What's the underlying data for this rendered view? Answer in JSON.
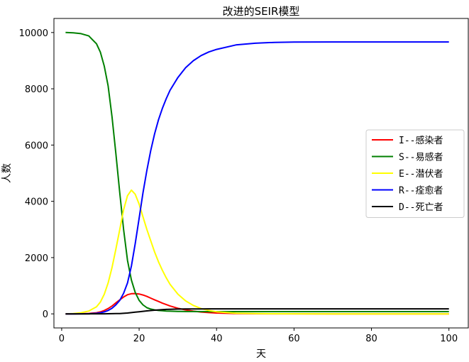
{
  "chart_data": {
    "type": "line",
    "title": "改进的SEIR模型",
    "xlabel": "天",
    "ylabel": "人数",
    "xlim": [
      -2,
      105
    ],
    "ylim": [
      -500,
      10500
    ],
    "xticks": [
      0,
      20,
      40,
      60,
      80,
      100
    ],
    "yticks": [
      0,
      2000,
      4000,
      6000,
      8000,
      10000
    ],
    "grid": false,
    "legend_position": "center-right",
    "x": [
      1,
      3,
      5,
      7,
      9,
      10,
      11,
      12,
      13,
      14,
      15,
      16,
      17,
      18,
      19,
      20,
      21,
      22,
      23,
      24,
      25,
      26,
      27,
      28,
      30,
      32,
      34,
      36,
      38,
      40,
      45,
      50,
      55,
      60,
      70,
      80,
      90,
      100
    ],
    "series": [
      {
        "name": "I--感染者",
        "color": "#ff0000",
        "values": [
          0,
          2,
          5,
          15,
          40,
          70,
          120,
          190,
          280,
          390,
          500,
          600,
          680,
          715,
          720,
          705,
          670,
          620,
          560,
          500,
          440,
          380,
          330,
          280,
          200,
          140,
          95,
          65,
          45,
          30,
          12,
          5,
          2,
          1,
          0,
          0,
          0,
          0
        ]
      },
      {
        "name": "S--易感者",
        "color": "#008000",
        "values": [
          10000,
          9990,
          9960,
          9880,
          9600,
          9300,
          8800,
          8100,
          7000,
          5700,
          4300,
          3000,
          1900,
          1200,
          760,
          480,
          320,
          220,
          170,
          140,
          120,
          110,
          100,
          95,
          88,
          84,
          82,
          80,
          80,
          80,
          80,
          80,
          80,
          80,
          80,
          80,
          80,
          80
        ]
      },
      {
        "name": "E--潜伏者",
        "color": "#ffff00",
        "values": [
          0,
          10,
          40,
          100,
          250,
          420,
          700,
          1100,
          1650,
          2300,
          3000,
          3700,
          4200,
          4400,
          4250,
          3900,
          3450,
          3000,
          2600,
          2200,
          1850,
          1550,
          1280,
          1050,
          700,
          460,
          300,
          190,
          120,
          75,
          25,
          10,
          4,
          2,
          0,
          0,
          0,
          0
        ]
      },
      {
        "name": "R--痊愈者",
        "color": "#0000ff",
        "values": [
          0,
          0,
          2,
          5,
          20,
          40,
          70,
          120,
          200,
          320,
          480,
          730,
          1100,
          1700,
          2500,
          3400,
          4300,
          5100,
          5800,
          6400,
          6900,
          7300,
          7650,
          7950,
          8400,
          8750,
          9000,
          9180,
          9310,
          9400,
          9560,
          9620,
          9650,
          9660,
          9665,
          9665,
          9665,
          9665
        ]
      },
      {
        "name": "D--死亡者",
        "color": "#000000",
        "values": [
          0,
          0,
          0,
          0,
          1,
          2,
          3,
          4,
          6,
          9,
          13,
          20,
          30,
          45,
          60,
          75,
          90,
          105,
          118,
          130,
          140,
          150,
          158,
          163,
          170,
          174,
          176,
          177,
          178,
          178,
          178,
          178,
          178,
          178,
          178,
          178,
          178,
          178
        ]
      }
    ]
  }
}
